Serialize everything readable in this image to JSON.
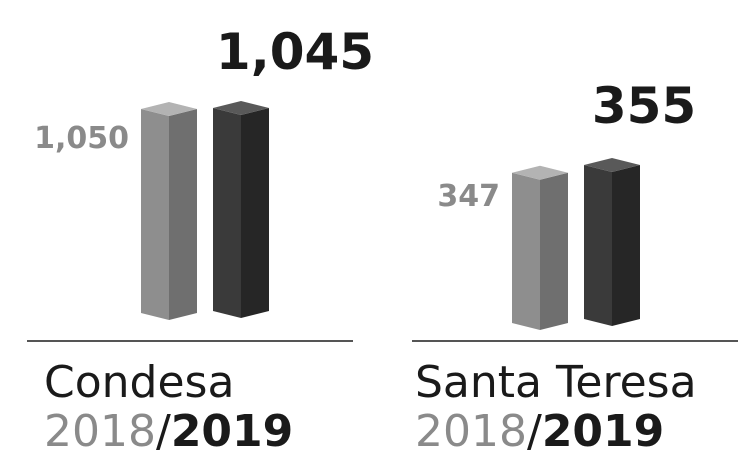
{
  "chart_data": {
    "type": "bar",
    "categories": [
      "Condesa",
      "Santa Teresa"
    ],
    "series": [
      {
        "name": "2018",
        "values": [
          1050,
          347
        ]
      },
      {
        "name": "2019",
        "values": [
          1045,
          355
        ]
      }
    ],
    "period_label": {
      "year_a": "2018",
      "separator": "/",
      "year_b": "2019"
    },
    "colors": {
      "2018": "#8c8c8c",
      "2019": "#3c3c3c",
      "text_2018": "#8a8a8a",
      "text_2019": "#1a1a1a"
    }
  }
}
